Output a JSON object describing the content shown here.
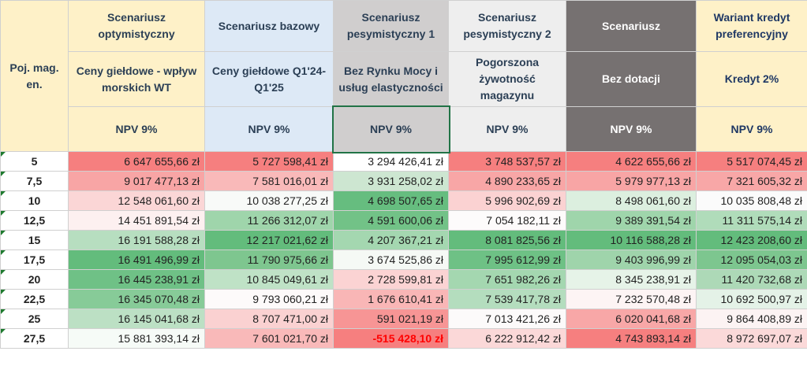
{
  "headers": {
    "position_label": "Poj. mag. en.",
    "scenarios": [
      {
        "name": "Scenariusz optymistyczny",
        "desc": "Ceny giełdowe - wpływ morskich WT",
        "metric": "NPV 9%",
        "bg": "#fef1c8",
        "fg": "#2b3f55"
      },
      {
        "name": "Scenariusz bazowy",
        "desc": "Ceny giełdowe Q1'24-Q1'25",
        "metric": "NPV 9%",
        "bg": "#dde9f6",
        "fg": "#2b3f55"
      },
      {
        "name": "Scenariusz pesymistyczny 1",
        "desc": "Bez Rynku Mocy i usług elastyczności",
        "metric": "NPV 9%",
        "bg": "#d0cece",
        "fg": "#2b3f55"
      },
      {
        "name": "Scenariusz pesymistyczny 2",
        "desc": "Pogorszona żywotność magazynu",
        "metric": "NPV 9%",
        "bg": "#eeeeee",
        "fg": "#2b3f55"
      },
      {
        "name": "Scenariusz",
        "desc": "Bez dotacji",
        "metric": "NPV 9%",
        "bg": "#767171",
        "fg": "#ffffff"
      },
      {
        "name": "Wariant kredyt preferencyjny",
        "desc": "Kredyt 2%",
        "metric": "NPV 9%",
        "bg": "#fef1c8",
        "fg": "#1f3864"
      }
    ]
  },
  "rows": [
    {
      "pos": "5",
      "cells": [
        {
          "t": "6 647 655,66 zł",
          "bg": "#f67f7f"
        },
        {
          "t": "5 727 598,41 zł",
          "bg": "#f67f7f"
        },
        {
          "t": "3 294 426,41 zł",
          "bg": "#ffffff"
        },
        {
          "t": "3 748 537,57 zł",
          "bg": "#f67f7f"
        },
        {
          "t": "4 622 655,66 zł",
          "bg": "#f67f7f"
        },
        {
          "t": "5 517 074,45 zł",
          "bg": "#f67f7f"
        }
      ]
    },
    {
      "pos": "7,5",
      "cells": [
        {
          "t": "9 017 477,13 zł",
          "bg": "#f8a5a5"
        },
        {
          "t": "7 581 016,01 zł",
          "bg": "#f9b9b9"
        },
        {
          "t": "3 931 258,02 zł",
          "bg": "#cde6d1"
        },
        {
          "t": "4 890 233,65 zł",
          "bg": "#f8a6a6"
        },
        {
          "t": "5 979 977,13 zł",
          "bg": "#f8a5a5"
        },
        {
          "t": "7 321 605,32 zł",
          "bg": "#f8a7a7"
        }
      ]
    },
    {
      "pos": "10",
      "cells": [
        {
          "t": "12 548 061,60 zł",
          "bg": "#fbd6d6"
        },
        {
          "t": "10 038 277,25 zł",
          "bg": "#f8faf8"
        },
        {
          "t": "4 698 507,65 zł",
          "bg": "#66bd7f"
        },
        {
          "t": "5 996 902,69 zł",
          "bg": "#fbd2d2"
        },
        {
          "t": "8 498 061,60 zł",
          "bg": "#dcefdf"
        },
        {
          "t": "10 035 808,48 zł",
          "bg": "#fbfbfb"
        }
      ]
    },
    {
      "pos": "12,5",
      "cells": [
        {
          "t": "14 451 891,54 zł",
          "bg": "#fdf0f0"
        },
        {
          "t": "11 266 312,07 zł",
          "bg": "#9fd5ab"
        },
        {
          "t": "4 591 600,06 zł",
          "bg": "#72c287"
        },
        {
          "t": "7 054 182,11 zł",
          "bg": "#fdfbfb"
        },
        {
          "t": "9 389 391,54 zł",
          "bg": "#9fd5ab"
        },
        {
          "t": "11 311 575,14 zł",
          "bg": "#b0dcba"
        }
      ]
    },
    {
      "pos": "15",
      "cells": [
        {
          "t": "16 191 588,28 zł",
          "bg": "#b7dec0"
        },
        {
          "t": "12 217 021,62 zł",
          "bg": "#63bc7c"
        },
        {
          "t": "4 207 367,21 zł",
          "bg": "#a4d7b0"
        },
        {
          "t": "8 081 825,56 zł",
          "bg": "#63bc7c"
        },
        {
          "t": "10 116 588,28 zł",
          "bg": "#63bc7c"
        },
        {
          "t": "12 423 208,60 zł",
          "bg": "#63bc7c"
        }
      ]
    },
    {
      "pos": "17,5",
      "cells": [
        {
          "t": "16 491 496,99 zł",
          "bg": "#63bc7c"
        },
        {
          "t": "11 790 975,66 zł",
          "bg": "#7ec68f"
        },
        {
          "t": "3 674 525,86 zł",
          "bg": "#f5f9f5"
        },
        {
          "t": "7 995 612,99 zł",
          "bg": "#6ec185"
        },
        {
          "t": "9 403 996,99 zł",
          "bg": "#9fd4ab"
        },
        {
          "t": "12 095 054,03 zł",
          "bg": "#7dc68f"
        }
      ]
    },
    {
      "pos": "20",
      "cells": [
        {
          "t": "16 445 238,91 zł",
          "bg": "#6fc186"
        },
        {
          "t": "10 845 049,61 zł",
          "bg": "#bfe2c6"
        },
        {
          "t": "2 728 599,81 zł",
          "bg": "#fbd3d3"
        },
        {
          "t": "7 651 982,26 zł",
          "bg": "#a4d7b0"
        },
        {
          "t": "8 345 238,91 zł",
          "bg": "#e6f3e8"
        },
        {
          "t": "11 420 732,68 zł",
          "bg": "#add9b7"
        }
      ]
    },
    {
      "pos": "22,5",
      "cells": [
        {
          "t": "16 345 070,48 zł",
          "bg": "#87cb98"
        },
        {
          "t": "9 793 060,21 zł",
          "bg": "#fdfafa"
        },
        {
          "t": "1 676 610,41 zł",
          "bg": "#f9b6b6"
        },
        {
          "t": "7 539 417,78 zł",
          "bg": "#b4ddbe"
        },
        {
          "t": "7 232 570,48 zł",
          "bg": "#fdf4f4"
        },
        {
          "t": "10 692 500,97 zł",
          "bg": "#e4f2e7"
        }
      ]
    },
    {
      "pos": "25",
      "cells": [
        {
          "t": "16 145 041,68 zł",
          "bg": "#bce0c4"
        },
        {
          "t": "8 707 471,00 zł",
          "bg": "#fad1d1"
        },
        {
          "t": "591 021,19 zł",
          "bg": "#f79595"
        },
        {
          "t": "7 013 421,26 zł",
          "bg": "#fcfafa"
        },
        {
          "t": "6 020 041,68 zł",
          "bg": "#f8a7a7"
        },
        {
          "t": "9 864 408,89 zł",
          "bg": "#fcf3f3"
        }
      ]
    },
    {
      "pos": "27,5",
      "cells": [
        {
          "t": "15 881 393,14 zł",
          "bg": "#f6fbf7"
        },
        {
          "t": "7 601 021,70 zł",
          "bg": "#f9b9b9"
        },
        {
          "t": "-515 428,10 zł",
          "bg": "#f67f7f",
          "neg": true
        },
        {
          "t": "6 222 912,42 zł",
          "bg": "#fbd8d8"
        },
        {
          "t": "4 743 893,14 zł",
          "bg": "#f67f7f"
        },
        {
          "t": "8 972 697,07 zł",
          "bg": "#fbd9d9"
        }
      ]
    }
  ]
}
